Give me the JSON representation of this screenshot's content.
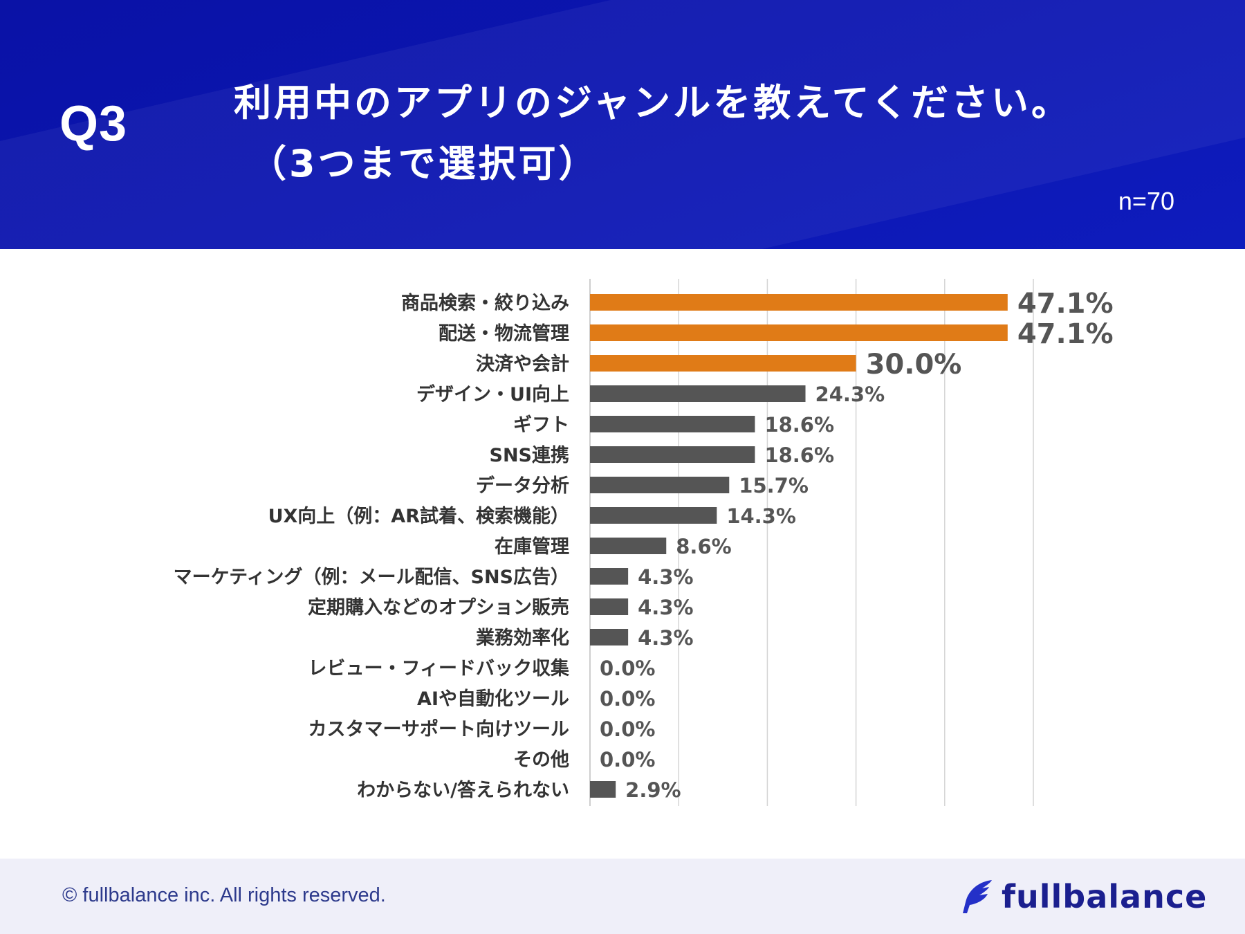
{
  "header": {
    "question_label": "Q3",
    "title_line1": "利用中のアプリのジャンルを教えてください。",
    "title_line2": "（3つまで選択可）",
    "sample_size": "n=70"
  },
  "chart_data": {
    "type": "bar",
    "orientation": "horizontal",
    "categories": [
      "商品検索・絞り込み",
      "配送・物流管理",
      "決済や会計",
      "デザイン・UI向上",
      "ギフト",
      "SNS連携",
      "データ分析",
      "UX向上（例：AR試着、検索機能）",
      "在庫管理",
      "マーケティング（例：メール配信、SNS広告）",
      "定期購入などのオプション販売",
      "業務効率化",
      "レビュー・フィードバック収集",
      "AIや自動化ツール",
      "カスタマーサポート向けツール",
      "その他",
      "わからない/答えられない"
    ],
    "values": [
      47.1,
      47.1,
      30.0,
      24.3,
      18.6,
      18.6,
      15.7,
      14.3,
      8.6,
      4.3,
      4.3,
      4.3,
      0.0,
      0.0,
      0.0,
      0.0,
      2.9
    ],
    "value_labels": [
      "47.1%",
      "47.1%",
      "30.0%",
      "24.3%",
      "18.6%",
      "18.6%",
      "15.7%",
      "14.3%",
      "8.6%",
      "4.3%",
      "4.3%",
      "4.3%",
      "0.0%",
      "0.0%",
      "0.0%",
      "0.0%",
      "2.9%"
    ],
    "highlighted": [
      true,
      true,
      true,
      false,
      false,
      false,
      false,
      false,
      false,
      false,
      false,
      false,
      false,
      false,
      false,
      false,
      false
    ],
    "xlim": [
      0,
      50
    ],
    "gridlines": [
      0,
      10,
      20,
      30,
      40,
      50
    ],
    "grid": true,
    "highlight_color": "#e07b17",
    "base_color": "#555555"
  },
  "footer": {
    "copyright": "© fullbalance inc. All rights reserved.",
    "brand": "fullbalance"
  },
  "colors": {
    "header_bg": "#0b14ae",
    "brand": "#1b1f8f"
  }
}
